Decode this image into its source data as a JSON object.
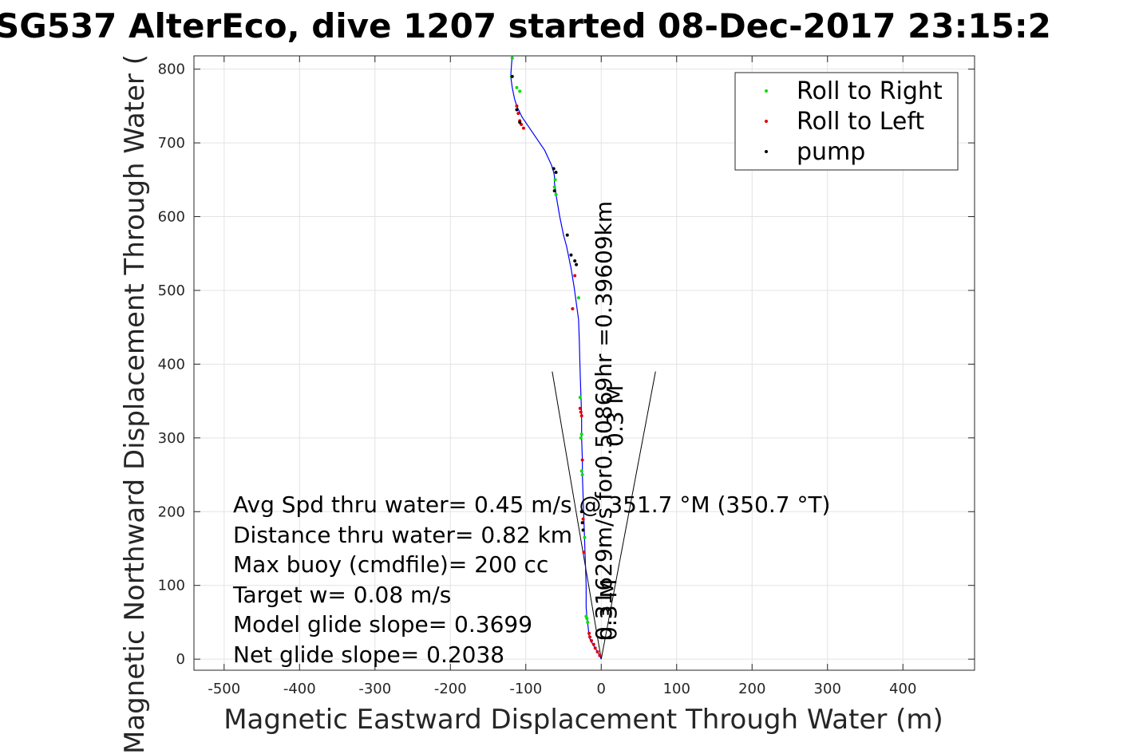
{
  "chart_data": {
    "type": "line",
    "title": "SG537 AlterEco, dive 1207 started 08-Dec-2017 23:15:2",
    "xlabel": "Magnetic Eastward Displacement Through Water (m)",
    "ylabel": "Magnetic Northward Displacement Through Water (",
    "xlim": [
      -540,
      495
    ],
    "ylim": [
      -15,
      818
    ],
    "xticks": [
      -500,
      -400,
      -300,
      -200,
      -100,
      0,
      100,
      200,
      300,
      400
    ],
    "yticks": [
      0,
      100,
      200,
      300,
      400,
      500,
      600,
      700,
      800
    ],
    "grid": true,
    "legend_position": "top-right",
    "legend": [
      "Roll to Right",
      "Roll to Left",
      "pump"
    ],
    "colors": {
      "track": "#0000ff",
      "roll_right": "#00e000",
      "roll_left": "#e00000",
      "pump": "#000000",
      "cone": "#000000"
    },
    "track": {
      "x": [
        0,
        -2,
        -5,
        -8,
        -11,
        -14,
        -16,
        -17,
        -18,
        -19,
        -20,
        -20,
        -21,
        -22,
        -23,
        -24,
        -25,
        -25,
        -26,
        -26,
        -27,
        -28,
        -29,
        -30,
        -32,
        -34,
        -36,
        -40,
        -43,
        -46,
        -50,
        -55,
        -60,
        -61,
        -62,
        -62,
        -63,
        -66,
        -75,
        -85,
        -95,
        -105,
        -112,
        -115,
        -118,
        -120,
        -119,
        -118
      ],
      "y": [
        0,
        5,
        10,
        15,
        20,
        25,
        30,
        40,
        50,
        58,
        70,
        100,
        130,
        160,
        190,
        220,
        250,
        270,
        300,
        330,
        360,
        390,
        430,
        460,
        475,
        490,
        505,
        530,
        545,
        560,
        575,
        600,
        630,
        640,
        645,
        655,
        660,
        670,
        690,
        705,
        720,
        735,
        750,
        760,
        775,
        790,
        805,
        818
      ]
    },
    "roll_right": {
      "x": [
        -18,
        -19,
        -20,
        -22,
        -25,
        -26,
        -27,
        -26,
        -28,
        -30,
        -60,
        -62,
        -61,
        -108,
        -112,
        -119,
        -118
      ],
      "y": [
        50,
        55,
        58,
        165,
        250,
        255,
        300,
        305,
        355,
        490,
        630,
        640,
        650,
        770,
        775,
        790,
        815
      ]
    },
    "roll_left": {
      "x": [
        -2,
        -5,
        -8,
        -10,
        -13,
        -15,
        -16,
        -23,
        -24,
        -25,
        -26,
        -27,
        -28,
        -35,
        -38,
        -112,
        -110,
        -108,
        -106,
        -103
      ],
      "y": [
        5,
        10,
        15,
        20,
        25,
        30,
        35,
        145,
        190,
        270,
        330,
        335,
        340,
        520,
        475,
        750,
        740,
        730,
        725,
        720
      ],
      "y_note": ""
    },
    "pump": {
      "x": [
        -24,
        -25,
        -26,
        -45,
        -40,
        -35,
        -33,
        -60,
        -62,
        -63,
        -108,
        -112,
        -118
      ],
      "y": [
        175,
        185,
        200,
        575,
        548,
        540,
        535,
        660,
        635,
        665,
        728,
        745,
        790
      ]
    },
    "cone": {
      "left": {
        "x": [
          0,
          -65
        ],
        "y": [
          0,
          390
        ]
      },
      "right": {
        "x": [
          0,
          72
        ],
        "y": [
          0,
          390
        ]
      }
    }
  },
  "annotations": {
    "cone_label_long": "0.31629m/s for0.50869hr =0.39609km",
    "cone_label_m1": "0.3 M",
    "cone_label_m2": "0.3 M",
    "lines": [
      "Avg Spd thru water=  0.45 m/s @ 351.7 °M (350.7 °T)",
      "Distance thru water=  0.82 km",
      "Max buoy (cmdfile)= 200 cc",
      "Target w= 0.08 m/s",
      "Model glide slope= 0.3699",
      "Net glide slope= 0.2038"
    ]
  }
}
